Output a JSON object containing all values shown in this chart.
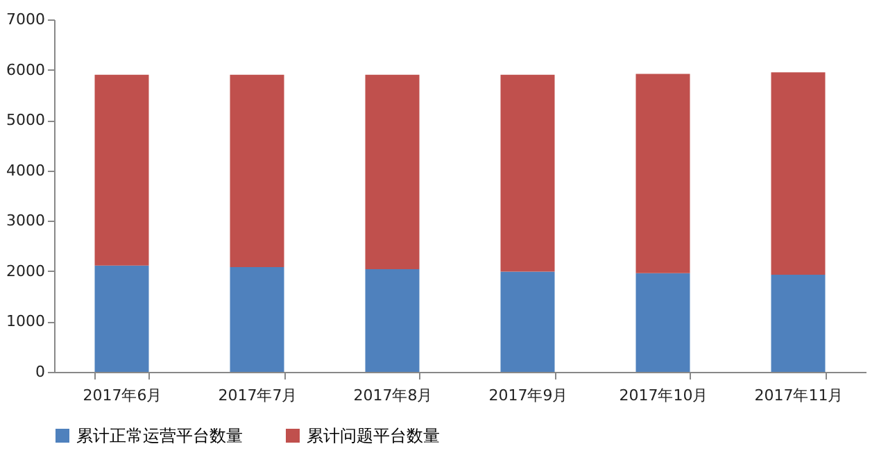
{
  "chart_data": {
    "type": "bar",
    "stacked": true,
    "categories": [
      "2017年6月",
      "2017年7月",
      "2017年8月",
      "2017年9月",
      "2017年10月",
      "2017年11月"
    ],
    "series": [
      {
        "name": "累计正常运营平台数量",
        "color": "#4f81bd",
        "values": [
          2110,
          2080,
          2040,
          1990,
          1960,
          1930
        ]
      },
      {
        "name": "累计问题平台数量",
        "color": "#c0504d",
        "values": [
          3790,
          3820,
          3860,
          3910,
          3960,
          4020
        ]
      }
    ],
    "ylim": [
      0,
      7000
    ],
    "yticks": [
      0,
      1000,
      2000,
      3000,
      4000,
      5000,
      6000,
      7000
    ],
    "grid": false,
    "legend": "bottom"
  }
}
